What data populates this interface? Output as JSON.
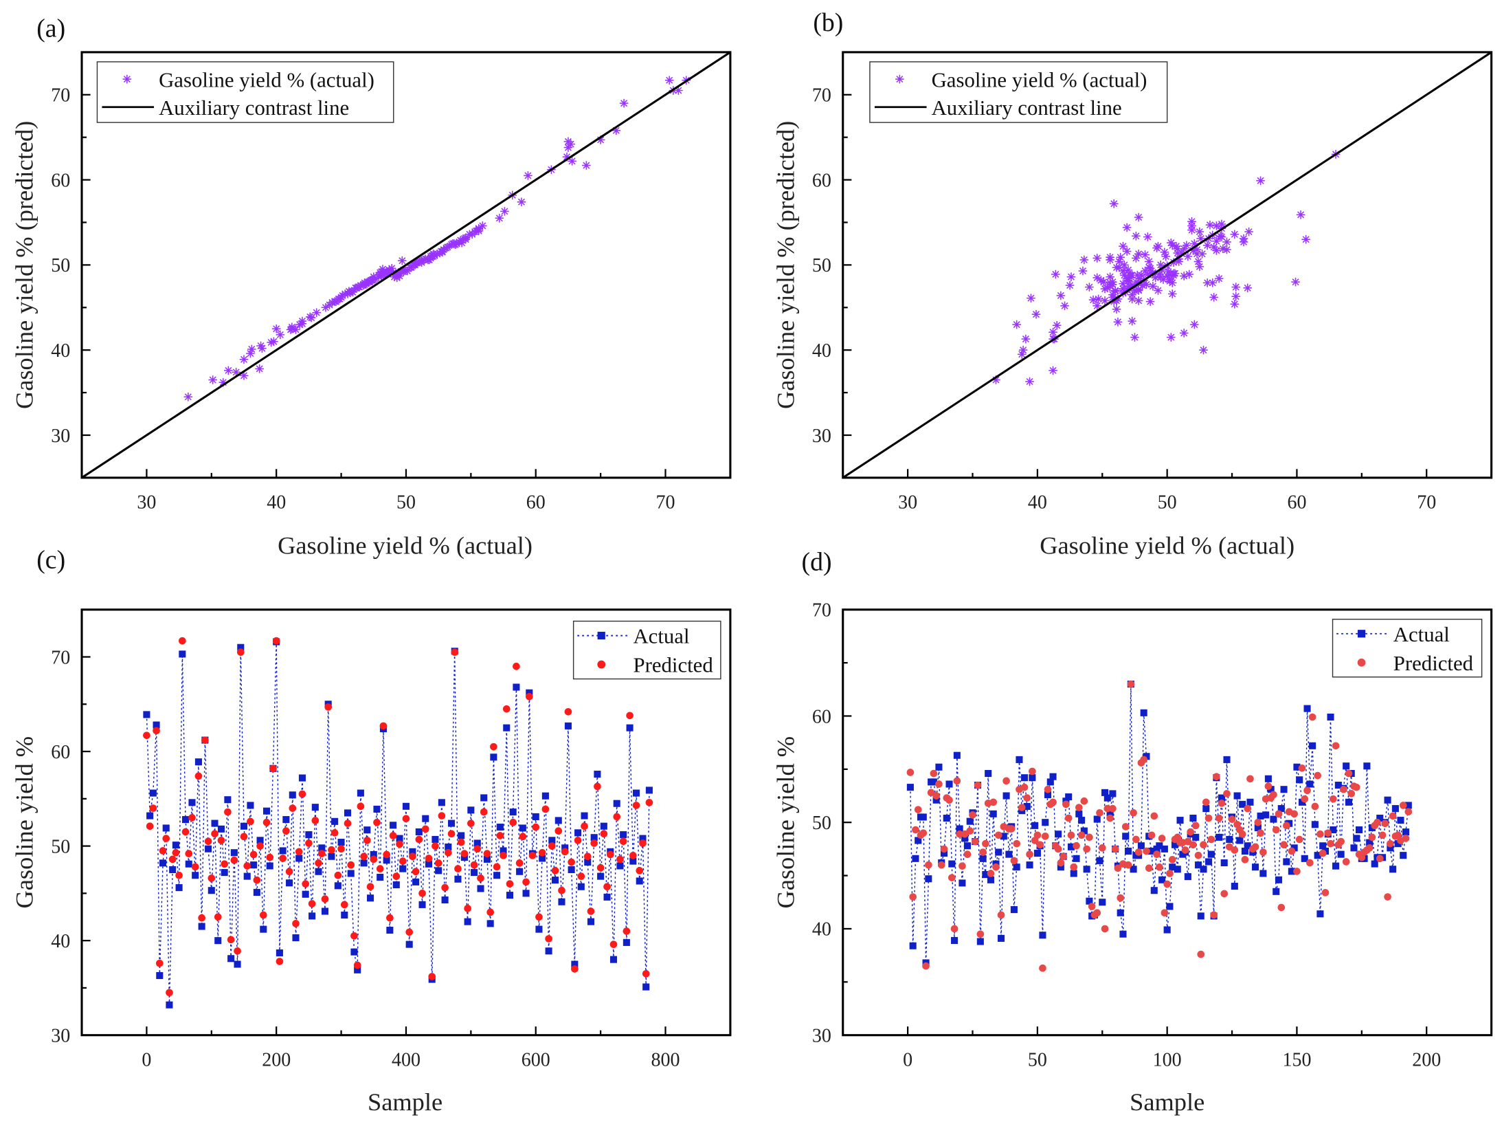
{
  "chart_data": [
    {
      "panel": "(a)",
      "type": "scatter",
      "xlabel": "Gasoline yield % (actual)",
      "ylabel": "Gasoline yield % (predicted)",
      "xlim": [
        25,
        75
      ],
      "ylim": [
        25,
        75
      ],
      "xticks": [
        30,
        40,
        50,
        60,
        70
      ],
      "yticks": [
        30,
        40,
        50,
        60,
        70
      ],
      "legend": {
        "position": "top-left",
        "entries": [
          "Gasoline yield % (actual)",
          "Auxiliary contrast line"
        ]
      },
      "points_source": "actual (x) vs predicted (y) pairs of panel (c)",
      "reference_line": {
        "from": [
          25,
          25
        ],
        "to": [
          75,
          75
        ]
      },
      "colors": {
        "marker": "#9933ff",
        "line": "#000000"
      }
    },
    {
      "panel": "(b)",
      "type": "scatter",
      "xlabel": "Gasoline yield % (actual)",
      "ylabel": "Gasoline yield % (predicted)",
      "xlim": [
        25,
        75
      ],
      "ylim": [
        25,
        75
      ],
      "xticks": [
        30,
        40,
        50,
        60,
        70
      ],
      "yticks": [
        30,
        40,
        50,
        60,
        70
      ],
      "legend": {
        "position": "top-left",
        "entries": [
          "Gasoline yield % (actual)",
          "Auxiliary contrast line"
        ]
      },
      "points_source": "actual (x) vs predicted (y) pairs of panel (d)",
      "reference_line": {
        "from": [
          25,
          25
        ],
        "to": [
          75,
          75
        ]
      },
      "colors": {
        "marker": "#9933ff",
        "line": "#000000"
      }
    },
    {
      "panel": "(c)",
      "type": "line",
      "xlabel": "Sample",
      "ylabel": "Gasoline yield %",
      "xlim": [
        -100,
        900
      ],
      "ylim": [
        30,
        75
      ],
      "xticks": [
        0,
        200,
        400,
        600,
        800
      ],
      "yticks": [
        30,
        40,
        50,
        60,
        70
      ],
      "legend": {
        "position": "top-right",
        "entries": [
          "Actual",
          "Predicted"
        ]
      },
      "x_start": 0,
      "x_step": 5,
      "colors": {
        "actual": "#1020c8",
        "predicted": "#ff1a1a"
      },
      "series": [
        {
          "name": "Actual",
          "values": [
            63.9,
            53.2,
            55.6,
            62.8,
            36.3,
            48.2,
            51.9,
            33.2,
            47.5,
            50.1,
            45.6,
            70.3,
            52.8,
            48.1,
            54.6,
            46.9,
            58.9,
            41.5,
            61.2,
            49.7,
            45.3,
            52.4,
            40.0,
            51.8,
            47.2,
            54.9,
            38.1,
            49.3,
            37.5,
            71.0,
            52.1,
            46.8,
            54.3,
            48.0,
            45.1,
            50.6,
            41.2,
            53.7,
            47.9,
            58.2,
            71.6,
            38.7,
            49.5,
            52.8,
            46.1,
            55.4,
            40.3,
            48.7,
            57.2,
            44.9,
            51.2,
            42.6,
            54.1,
            47.3,
            49.8,
            43.1,
            65.0,
            48.9,
            52.6,
            45.8,
            50.4,
            42.7,
            53.5,
            47.1,
            38.8,
            36.9,
            55.6,
            48.2,
            51.7,
            44.5,
            49.1,
            53.9,
            46.7,
            62.4,
            48.5,
            41.1,
            52.2,
            45.9,
            50.8,
            47.6,
            54.2,
            39.6,
            49.4,
            46.2,
            51.5,
            43.8,
            52.9,
            48.1,
            35.9,
            50.7,
            47.4,
            54.6,
            44.3,
            49.9,
            52.4,
            70.6,
            46.5,
            51.1,
            48.8,
            42.0,
            53.8,
            47.2,
            50.3,
            45.5,
            55.1,
            48.6,
            41.8,
            59.4,
            46.9,
            52.0,
            49.5,
            62.5,
            44.8,
            53.6,
            66.8,
            47.3,
            51.9,
            45.0,
            66.2,
            49.2,
            53.1,
            41.2,
            48.7,
            55.3,
            38.9,
            50.6,
            46.4,
            52.7,
            44.1,
            49.8,
            62.7,
            47.5,
            37.5,
            51.4,
            45.7,
            53.2,
            48.3,
            42.0,
            50.9,
            57.6,
            46.8,
            52.1,
            44.6,
            49.4,
            38.0,
            54.5,
            47.9,
            51.2,
            39.8,
            62.5,
            48.4,
            55.6,
            46.3,
            50.8,
            35.1,
            55.9
          ]
        },
        {
          "name": "Predicted",
          "values": [
            61.7,
            52.1,
            54.0,
            62.2,
            37.6,
            49.5,
            50.8,
            34.5,
            48.6,
            49.3,
            46.9,
            71.7,
            51.5,
            49.2,
            53.0,
            47.8,
            57.4,
            42.4,
            61.2,
            50.5,
            46.6,
            51.3,
            42.5,
            50.6,
            48.1,
            53.6,
            40.1,
            48.5,
            38.9,
            70.5,
            51.0,
            47.9,
            52.6,
            49.1,
            46.4,
            50.0,
            42.7,
            52.5,
            48.8,
            58.2,
            71.7,
            37.8,
            48.7,
            51.6,
            47.3,
            54.0,
            41.8,
            49.4,
            55.5,
            46.0,
            50.3,
            43.9,
            52.7,
            48.2,
            49.2,
            44.4,
            64.7,
            49.6,
            51.4,
            46.9,
            49.7,
            43.8,
            52.4,
            48.0,
            40.5,
            37.4,
            54.2,
            48.9,
            50.6,
            45.7,
            48.6,
            52.5,
            47.6,
            62.7,
            49.1,
            42.4,
            51.1,
            46.8,
            50.2,
            48.4,
            52.9,
            40.9,
            48.9,
            47.3,
            50.7,
            45.0,
            51.8,
            48.7,
            36.2,
            50.0,
            48.2,
            53.2,
            45.6,
            49.3,
            51.3,
            70.5,
            47.6,
            50.4,
            49.2,
            43.4,
            52.4,
            48.0,
            49.7,
            46.6,
            53.6,
            49.2,
            43.0,
            60.5,
            47.8,
            51.1,
            49.0,
            64.5,
            46.0,
            52.5,
            69.0,
            48.2,
            51.0,
            46.2,
            65.8,
            49.0,
            52.0,
            42.5,
            49.3,
            53.9,
            40.2,
            50.0,
            47.4,
            51.6,
            45.3,
            49.4,
            64.2,
            48.3,
            37.0,
            50.6,
            46.8,
            52.1,
            48.9,
            43.1,
            50.3,
            56.3,
            47.7,
            51.3,
            45.7,
            49.1,
            39.6,
            53.1,
            48.6,
            50.5,
            41.0,
            63.8,
            49.0,
            54.3,
            47.4,
            50.3,
            36.5,
            54.6
          ]
        }
      ]
    },
    {
      "panel": "(d)",
      "type": "line",
      "xlabel": "Sample",
      "ylabel": "Gasoline yield %",
      "xlim": [
        -25,
        225
      ],
      "ylim": [
        30,
        70
      ],
      "xticks": [
        0,
        50,
        100,
        150,
        200
      ],
      "yticks": [
        30,
        40,
        50,
        60,
        70
      ],
      "legend": {
        "position": "top-right",
        "entries": [
          "Actual",
          "Predicted"
        ]
      },
      "x_start": 1,
      "x_step": 1,
      "colors": {
        "actual": "#1020c8",
        "predicted": "#e84848"
      },
      "series": [
        {
          "name": "Actual",
          "values": [
            53.3,
            38.4,
            46.6,
            48.3,
            50.5,
            50.5,
            36.8,
            44.7,
            53.8,
            53.8,
            52.1,
            55.2,
            46.2,
            47.1,
            50.4,
            53.6,
            46.1,
            38.9,
            56.3,
            49.4,
            44.3,
            48.5,
            47.8,
            50.1,
            50.9,
            48.2,
            53.5,
            38.8,
            46.6,
            45.1,
            54.6,
            44.6,
            50.8,
            46.1,
            47.2,
            39.1,
            48.7,
            52.5,
            47.0,
            49.6,
            41.8,
            45.8,
            55.9,
            51.1,
            54.2,
            51.5,
            46.0,
            54.2,
            49.7,
            47.1,
            47.8,
            39.4,
            50.0,
            52.6,
            53.8,
            54.3,
            47.8,
            48.9,
            45.8,
            46.8,
            52.0,
            52.4,
            47.7,
            45.2,
            46.6,
            50.8,
            50.2,
            49.2,
            45.6,
            42.6,
            41.2,
            41.3,
            50.3,
            46.4,
            42.5,
            52.8,
            52.3,
            50.9,
            52.7,
            47.5,
            45.9,
            41.5,
            39.5,
            48.7,
            47.3,
            63.0,
            45.6,
            46.9,
            46.9,
            47.8,
            60.3,
            56.2,
            48.7,
            47.3,
            43.6,
            47.5,
            47.8,
            44.6,
            47.5,
            39.9,
            42.1,
            45.8,
            47.9,
            45.6,
            50.2,
            47.0,
            47.2,
            44.9,
            48.9,
            50.4,
            48.6,
            46.0,
            41.2,
            45.6,
            51.3,
            46.3,
            47.0,
            41.2,
            54.2,
            48.6,
            52.3,
            46.2,
            55.9,
            48.4,
            50.5,
            44.0,
            52.5,
            48.3,
            51.7,
            47.3,
            47.8,
            51.9,
            47.2,
            45.8,
            49.5,
            50.6,
            45.2,
            50.7,
            54.1,
            53.1,
            50.3,
            43.5,
            44.6,
            51.3,
            53.1,
            46.3,
            49.9,
            45.4,
            47.6,
            55.2,
            54.0,
            51.9,
            46.6,
            60.7,
            53.6,
            57.2,
            49.8,
            46.9,
            41.4,
            47.8,
            47.3,
            48.9,
            59.9,
            49.3,
            45.9,
            53.5,
            47.0,
            53.2,
            55.3,
            51.9,
            54.6,
            47.6,
            48.5,
            49.3,
            46.6,
            46.6,
            55.3,
            48.1,
            49.5,
            46.1,
            46.7,
            50.4,
            46.7,
            50.0,
            52.1,
            47.6,
            45.6,
            51.3,
            48.0,
            50.2,
            46.9,
            49.1,
            51.6
          ]
        },
        {
          "name": "Predicted",
          "values": [
            54.7,
            43.0,
            49.3,
            51.2,
            48.8,
            49.0,
            36.5,
            46.0,
            52.8,
            54.6,
            52.5,
            53.6,
            46.0,
            47.5,
            52.3,
            52.1,
            44.8,
            40.0,
            53.9,
            48.9,
            45.9,
            48.9,
            47.0,
            49.2,
            50.7,
            48.2,
            53.5,
            39.5,
            47.2,
            48.0,
            51.8,
            45.2,
            51.9,
            45.8,
            48.8,
            41.3,
            49.6,
            53.9,
            49.4,
            49.4,
            46.4,
            48.0,
            53.1,
            51.4,
            53.3,
            52.3,
            47.0,
            54.8,
            48.3,
            48.8,
            47.9,
            36.3,
            48.7,
            53.1,
            51.7,
            51.9,
            47.8,
            47.5,
            46.2,
            46.8,
            51.7,
            50.4,
            48.8,
            45.8,
            47.8,
            51.4,
            48.8,
            52.0,
            47.5,
            48.6,
            42.1,
            41.3,
            41.5,
            50.9,
            47.6,
            40.0,
            51.3,
            50.4,
            51.3,
            47.5,
            45.7,
            42.9,
            46.1,
            49.6,
            46.0,
            63.0,
            50.9,
            48.4,
            47.2,
            55.6,
            55.9,
            47.3,
            45.7,
            48.8,
            50.6,
            47.0,
            45.8,
            48.5,
            41.5,
            44.2,
            45.2,
            46.5,
            48.4,
            48.6,
            48.1,
            48.1,
            47.4,
            48.2,
            49.1,
            47.9,
            49.7,
            46.9,
            37.6,
            47.9,
            51.9,
            50.4,
            48.4,
            41.3,
            54.3,
            50.4,
            51.8,
            43.3,
            52.7,
            47.7,
            50.3,
            47.4,
            49.8,
            49.3,
            48.9,
            46.5,
            51.3,
            54.1,
            47.5,
            47.7,
            50.0,
            49.0,
            47.2,
            52.2,
            53.4,
            52.3,
            52.6,
            49.3,
            50.8,
            42.0,
            47.9,
            49.7,
            51.0,
            47.3,
            50.8,
            45.4,
            48.4,
            55.1,
            52.2,
            53.0,
            46.2,
            59.9,
            51.5,
            54.4,
            48.9,
            47.1,
            43.4,
            49.0,
            48.0,
            52.2,
            57.2,
            47.9,
            48.2,
            53.1,
            46.3,
            54.6,
            52.7,
            53.4,
            53.3,
            47.0,
            46.7,
            47.2,
            47.4,
            47.6,
            48.6,
            49.7,
            50.0,
            46.6,
            48.8,
            49.9,
            43.0,
            48.0,
            50.6,
            48.7,
            48.8,
            48.3,
            51.6,
            48.5,
            51.0
          ]
        }
      ]
    }
  ]
}
